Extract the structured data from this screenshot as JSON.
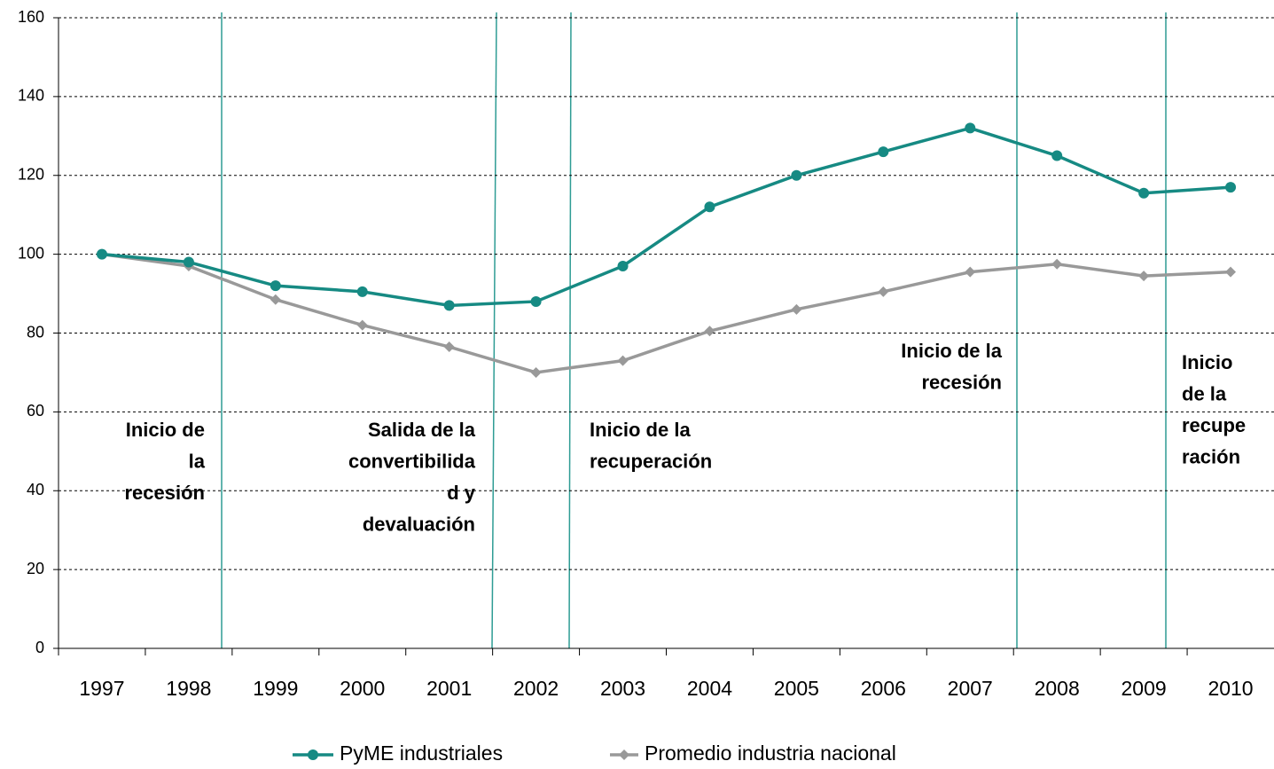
{
  "chart_data": {
    "type": "line",
    "categories": [
      "1997",
      "1998",
      "1999",
      "2000",
      "2001",
      "2002",
      "2003",
      "2004",
      "2005",
      "2006",
      "2007",
      "2008",
      "2009",
      "2010"
    ],
    "series": [
      {
        "name": "PyME industriales",
        "color": "#168a83",
        "marker": "circle",
        "values": [
          100,
          98,
          92,
          90.5,
          87,
          88,
          97,
          112,
          120,
          126,
          132,
          125,
          115.5,
          117
        ]
      },
      {
        "name": "Promedio industria nacional",
        "color": "#999999",
        "marker": "diamond",
        "values": [
          100,
          97,
          88.5,
          82,
          76.5,
          70,
          73,
          80.5,
          86,
          90.5,
          95.5,
          97.5,
          94.5,
          95.5
        ]
      }
    ],
    "ylim": [
      0,
      160
    ],
    "yticks": [
      0,
      20,
      40,
      60,
      80,
      100,
      120,
      140,
      160
    ],
    "grid": true,
    "legend": "bottom",
    "annotations": [
      {
        "lines": [
          "Inicio de",
          "la",
          "recesión"
        ]
      },
      {
        "lines": [
          "Salida de la",
          "convertibilida",
          "d y",
          "devaluación"
        ]
      },
      {
        "lines": [
          "Inicio de la",
          "recuperación"
        ]
      },
      {
        "lines": [
          "Inicio de la",
          "recesión"
        ]
      },
      {
        "lines": [
          "Inicio",
          "de la",
          "recupe",
          "ración"
        ]
      }
    ]
  }
}
